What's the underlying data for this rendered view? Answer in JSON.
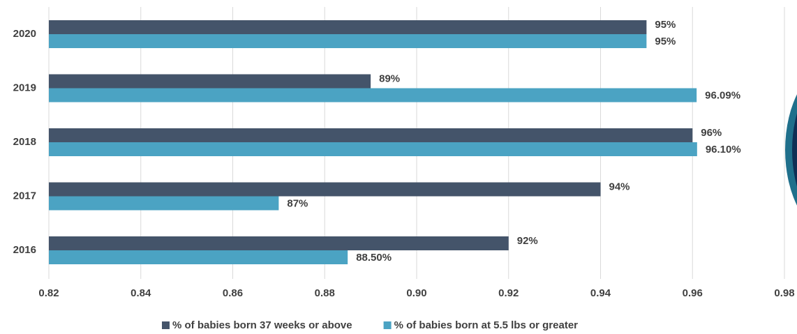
{
  "chart_data": {
    "type": "bar",
    "orientation": "horizontal",
    "categories": [
      "2020",
      "2019",
      "2018",
      "2017",
      "2016"
    ],
    "series": [
      {
        "name": "% of babies born 37 weeks or above",
        "color": "#44546a",
        "values": [
          0.95,
          0.89,
          0.96,
          0.94,
          0.92
        ],
        "value_labels": [
          "95%",
          "89%",
          "96%",
          "94%",
          "92%"
        ]
      },
      {
        "name": "% of babies born at 5.5 lbs or greater",
        "color": "#4ba3c3",
        "values": [
          0.95,
          0.9609,
          0.961,
          0.87,
          0.885
        ],
        "value_labels": [
          "95%",
          "96.09%",
          "96.10%",
          "87%",
          "88.50%"
        ]
      }
    ],
    "xlim": [
      0.82,
      0.98
    ],
    "xticks": [
      0.82,
      0.84,
      0.86,
      0.88,
      {
        "value": 0.9,
        "label": "0.90"
      },
      0.92,
      0.94,
      0.96,
      0.98
    ],
    "grid": true,
    "legend": "bottom"
  }
}
